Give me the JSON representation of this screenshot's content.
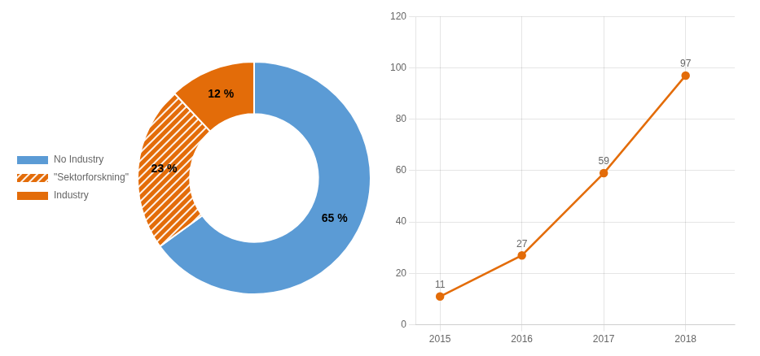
{
  "chart_data": [
    {
      "type": "donut",
      "categories": [
        "No Industry",
        "\"Sektorforskning\"",
        "Industry"
      ],
      "values": [
        65,
        23,
        12
      ],
      "value_labels": [
        "65 %",
        "23 %",
        "12 %"
      ],
      "colors": [
        "#5B9BD5",
        "#E36C09",
        "#E36C09"
      ],
      "data_labels": true,
      "legend": "left"
    },
    {
      "type": "line",
      "x": [
        2015,
        2016,
        2017,
        2018
      ],
      "values": [
        11,
        27,
        59,
        97
      ],
      "color": "#E36C09",
      "marker": "circle",
      "xlim": [
        2014.7,
        2018.6
      ],
      "xticks": [
        2015,
        2016,
        2017,
        2018
      ],
      "ylim": [
        0,
        120
      ],
      "yticks": [
        0,
        20,
        40,
        60,
        80,
        100,
        120
      ],
      "grid": true,
      "data_labels": true
    }
  ]
}
